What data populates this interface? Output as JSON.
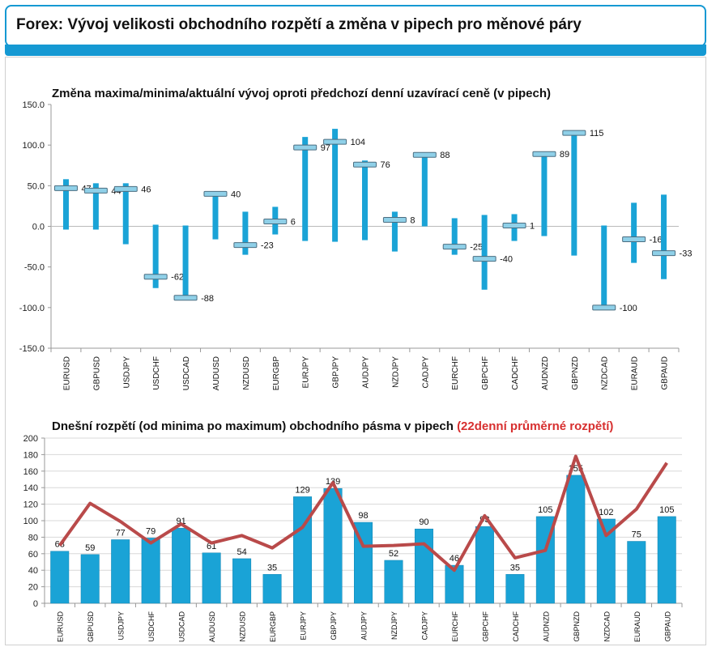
{
  "header": {
    "title": "Forex: Vývoj velikosti obchodního rozpětí a změna v pipech pro měnové páry"
  },
  "colors": {
    "accent": "#1599d3",
    "bar": "#1aa3d6",
    "line": "#b94a4a",
    "highlight": "#d72f2f"
  },
  "chart_data": [
    {
      "type": "bar",
      "title": "Změna maxima/minima/aktuální vývoj oproti předchozí denní uzavírací ceně (v pipech)",
      "categories": [
        "EURUSD",
        "GBPUSD",
        "USDJPY",
        "USDCHF",
        "USDCAD",
        "AUDUSD",
        "NZDUSD",
        "EURGBP",
        "EURJPY",
        "GBPJPY",
        "AUDJPY",
        "NZDJPY",
        "CADJPY",
        "EURCHF",
        "GBPCHF",
        "CADCHF",
        "AUDNZD",
        "GBPNZD",
        "NZDCAD",
        "EURAUD",
        "GBPAUD"
      ],
      "high": [
        58,
        53,
        53,
        2,
        1,
        41,
        18,
        24,
        110,
        120,
        81,
        18,
        90,
        10,
        14,
        15,
        91,
        118,
        1,
        29,
        39
      ],
      "low": [
        -4,
        -4,
        -22,
        -76,
        -90,
        -16,
        -35,
        -10,
        -18,
        -19,
        -17,
        -31,
        0,
        -35,
        -78,
        -18,
        -12,
        -36,
        -102,
        -45,
        -65
      ],
      "current": [
        47,
        44,
        46,
        -62,
        -88,
        40,
        -23,
        6,
        97,
        104,
        76,
        8,
        88,
        -25,
        -40,
        1,
        89,
        115,
        -100,
        -16,
        -33
      ],
      "labels": [
        "47",
        "44",
        "46",
        "-62",
        "-88",
        "40",
        "-23",
        "6",
        "97",
        "104",
        "76",
        "8",
        "88",
        "-25",
        "-40",
        "1",
        "89",
        "115",
        "-100",
        "-16",
        "-33"
      ],
      "ylim": [
        -150,
        150
      ],
      "yticks": [
        "150.0",
        "100.0",
        "50.0",
        "0.0",
        "-50.0",
        "-100.0",
        "-150.0"
      ]
    },
    {
      "type": "bar",
      "title": "Dnešní rozpětí (od minima po maximum) obchodního pásma v pipech",
      "subtitle_highlight": "(22denní průměrné rozpětí)",
      "categories": [
        "EURUSD",
        "GBPUSD",
        "USDJPY",
        "USDCHF",
        "USDCAD",
        "AUDUSD",
        "NZDUSD",
        "EURGBP",
        "EURJPY",
        "GBPJPY",
        "AUDJPY",
        "NZDJPY",
        "CADJPY",
        "EURCHF",
        "GBPCHF",
        "CADCHF",
        "AUDNZD",
        "GBPNZD",
        "NZDCAD",
        "EURAUD",
        "GBPAUD"
      ],
      "values": [
        63,
        59,
        77,
        79,
        91,
        61,
        54,
        35,
        129,
        139,
        98,
        52,
        90,
        46,
        93,
        35,
        105,
        155,
        102,
        75,
        105
      ],
      "labels": [
        "63",
        "59",
        "77",
        "79",
        "91",
        "61",
        "54",
        "35",
        "129",
        "139",
        "98",
        "52",
        "90",
        "46",
        "93",
        "35",
        "105",
        "155",
        "102",
        "75",
        "105"
      ],
      "average": [
        70,
        121,
        99,
        73,
        96,
        73,
        82,
        67,
        92,
        146,
        69,
        70,
        72,
        40,
        106,
        55,
        64,
        178,
        82,
        114,
        170
      ],
      "ylim": [
        0,
        200
      ],
      "yticks": [
        "200",
        "180",
        "160",
        "140",
        "120",
        "100",
        "80",
        "60",
        "40",
        "20",
        "0"
      ]
    }
  ]
}
